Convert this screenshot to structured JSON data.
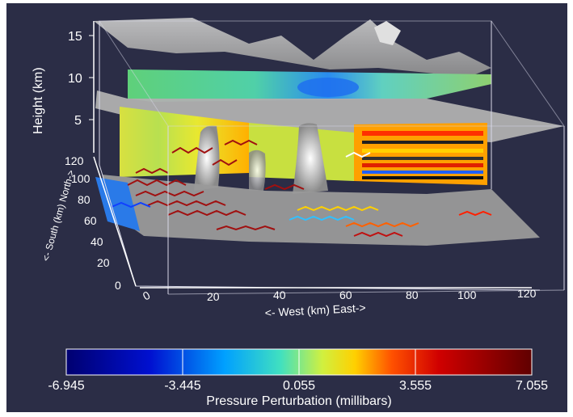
{
  "visualization": {
    "axes": {
      "height_label": "Height (km)",
      "height_ticks": [
        "15",
        "10",
        "5"
      ],
      "southnorth_label": "<- South (km) North->",
      "southnorth_ticks": [
        "120",
        "100",
        "80",
        "60",
        "40",
        "20",
        "0"
      ],
      "westeast_label": "<- West (km) East->",
      "westeast_ticks": [
        "0",
        "20",
        "40",
        "60",
        "80",
        "100",
        "120"
      ]
    },
    "colorbar": {
      "title": "Pressure Perturbation (millibars)",
      "ticks": [
        "-6.945",
        "-3.445",
        "0.055",
        "3.555",
        "7.055"
      ],
      "colors": [
        "#000070",
        "#0010d0",
        "#00a0ff",
        "#20e0d0",
        "#90f060",
        "#ffff00",
        "#ff9000",
        "#ff2000",
        "#c00000",
        "#600000"
      ]
    },
    "colors": {
      "background": "#2b2d46",
      "surface": "#b8b8b8",
      "trajectory": "#a01010"
    }
  }
}
